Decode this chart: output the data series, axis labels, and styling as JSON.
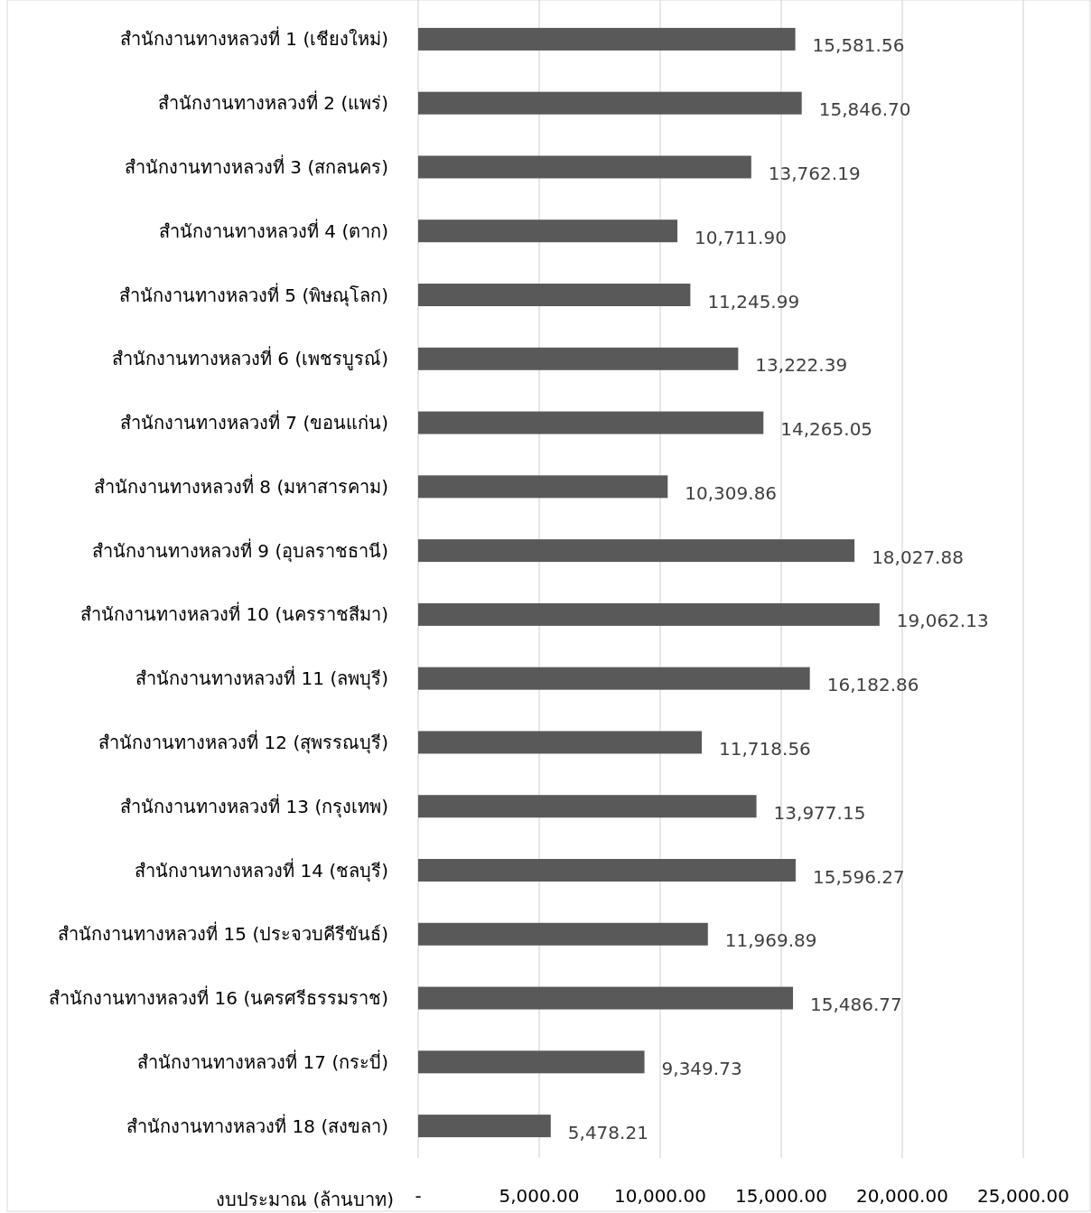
{
  "chart_data": {
    "type": "bar",
    "orientation": "horizontal",
    "xlabel": "งบประมาณ (ล้านบาท)",
    "categories": [
      "สำนักงานทางหลวงที่ 1 (เชียงใหม่)",
      "สำนักงานทางหลวงที่ 2 (แพร่)",
      "สำนักงานทางหลวงที่ 3 (สกลนคร)",
      "สำนักงานทางหลวงที่ 4 (ตาก)",
      "สำนักงานทางหลวงที่ 5 (พิษณุโลก)",
      "สำนักงานทางหลวงที่ 6 (เพชรบูรณ์)",
      "สำนักงานทางหลวงที่ 7 (ขอนแก่น)",
      "สำนักงานทางหลวงที่ 8 (มหาสารคาม)",
      "สำนักงานทางหลวงที่ 9 (อุบลราชธานี)",
      "สำนักงานทางหลวงที่ 10 (นครราชสีมา)",
      "สำนักงานทางหลวงที่ 11 (ลพบุรี)",
      "สำนักงานทางหลวงที่ 12 (สุพรรณบุรี)",
      "สำนักงานทางหลวงที่ 13 (กรุงเทพ)",
      "สำนักงานทางหลวงที่ 14 (ชลบุรี)",
      "สำนักงานทางหลวงที่ 15 (ประจวบคีรีขันธ์)",
      "สำนักงานทางหลวงที่ 16 (นครศรีธรรมราช)",
      "สำนักงานทางหลวงที่ 17 (กระบี่)",
      "สำนักงานทางหลวงที่ 18 (สงขลา)"
    ],
    "values": [
      15581.56,
      15846.7,
      13762.19,
      10711.9,
      11245.99,
      13222.39,
      14265.05,
      10309.86,
      18027.88,
      19062.13,
      16182.86,
      11718.56,
      13977.15,
      15596.27,
      11969.89,
      15486.77,
      9349.73,
      5478.21
    ],
    "value_labels": [
      "15,581.56",
      "15,846.70",
      "13,762.19",
      "10,711.90",
      "11,245.99",
      "13,222.39",
      "14,265.05",
      "10,309.86",
      "18,027.88",
      "19,062.13",
      "16,182.86",
      "11,718.56",
      "13,977.15",
      "15,596.27",
      "11,969.89",
      "15,486.77",
      "9,349.73",
      "5,478.21"
    ],
    "color": "#595959",
    "xlim": [
      0,
      25000
    ],
    "xticks": [
      {
        "value": 0,
        "label": "-"
      },
      {
        "value": 5000,
        "label": "5,000.00"
      },
      {
        "value": 10000,
        "label": "10,000.00"
      },
      {
        "value": 15000,
        "label": "15,000.00"
      },
      {
        "value": 20000,
        "label": "20,000.00"
      },
      {
        "value": 25000,
        "label": "25,000.00"
      }
    ],
    "grid": "x"
  }
}
